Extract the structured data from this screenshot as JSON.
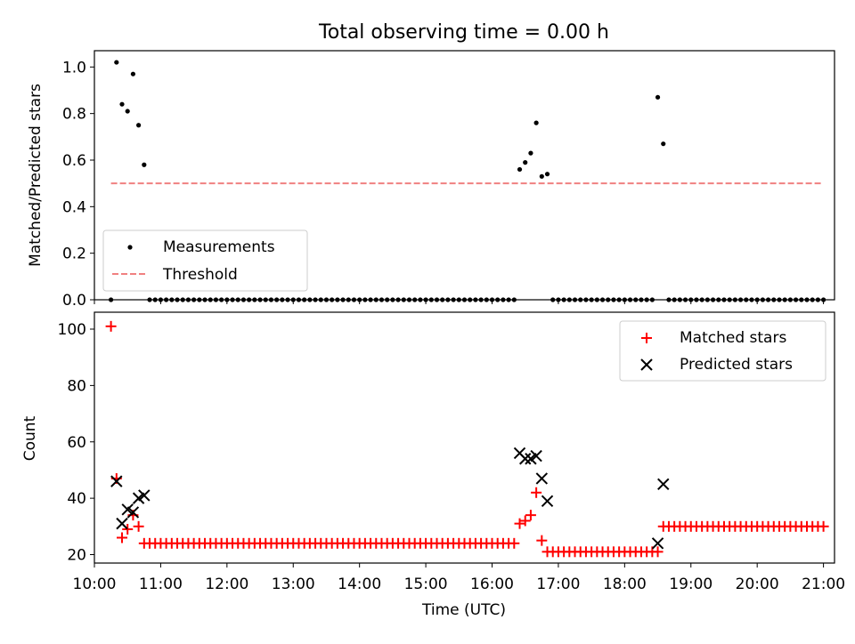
{
  "chart_data": [
    {
      "type": "scatter",
      "title": "Total observing time = 0.00 h",
      "xlabel": "",
      "ylabel": "Matched/Predicted stars",
      "xlim": [
        "10:00",
        "21:10"
      ],
      "ylim": [
        0.0,
        1.07
      ],
      "yticks": [
        "0.0",
        "0.2",
        "0.4",
        "0.6",
        "0.8",
        "1.0"
      ],
      "grid": false,
      "legend": {
        "placement": "lower-left",
        "entries": [
          {
            "label": "Measurements",
            "marker": "dot",
            "color": "#000000"
          },
          {
            "label": "Threshold",
            "marker": "dashed-line",
            "color": "#f08080"
          }
        ]
      },
      "series": [
        {
          "name": "Measurements",
          "color": "#000000",
          "points": [
            [
              "10:15",
              0.0
            ],
            [
              "10:20",
              1.02
            ],
            [
              "10:25",
              0.84
            ],
            [
              "10:30",
              0.81
            ],
            [
              "10:35",
              0.97
            ],
            [
              "10:40",
              0.75
            ],
            [
              "10:45",
              0.58
            ],
            [
              "16:25",
              0.56
            ],
            [
              "16:30",
              0.59
            ],
            [
              "16:35",
              0.63
            ],
            [
              "16:40",
              0.76
            ],
            [
              "16:45",
              0.53
            ],
            [
              "16:50",
              0.54
            ],
            [
              "18:30",
              0.87
            ],
            [
              "18:35",
              0.67
            ]
          ],
          "zero_runs": [
            {
              "start": "10:50",
              "end": "16:20",
              "step_min": 5,
              "value": 0.0
            },
            {
              "start": "16:55",
              "end": "18:25",
              "step_min": 5,
              "value": 0.0
            },
            {
              "start": "18:40",
              "end": "21:00",
              "step_min": 5,
              "value": 0.0
            }
          ]
        },
        {
          "name": "Threshold",
          "color": "#f08080",
          "line": [
            [
              "10:15",
              0.5
            ],
            [
              "21:00",
              0.5
            ]
          ]
        }
      ]
    },
    {
      "type": "scatter",
      "title": "",
      "xlabel": "Time (UTC)",
      "ylabel": "Count",
      "xlim": [
        "10:00",
        "21:10"
      ],
      "ylim": [
        17,
        106
      ],
      "xticks": [
        "10:00",
        "11:00",
        "12:00",
        "13:00",
        "14:00",
        "15:00",
        "16:00",
        "17:00",
        "18:00",
        "19:00",
        "20:00",
        "21:00"
      ],
      "yticks": [
        "20",
        "40",
        "60",
        "80",
        "100"
      ],
      "grid": false,
      "legend": {
        "placement": "upper-right",
        "entries": [
          {
            "label": "Matched stars",
            "marker": "plus",
            "color": "#ff0000"
          },
          {
            "label": "Predicted stars",
            "marker": "x",
            "color": "#000000"
          }
        ]
      },
      "series": [
        {
          "name": "Matched stars",
          "color": "#ff0000",
          "points": [
            [
              "10:15",
              101
            ],
            [
              "10:20",
              47
            ],
            [
              "10:25",
              26
            ],
            [
              "10:30",
              29
            ],
            [
              "10:35",
              34
            ],
            [
              "10:40",
              30
            ],
            [
              "10:45",
              24
            ],
            [
              "16:25",
              31
            ],
            [
              "16:30",
              32
            ],
            [
              "16:35",
              34
            ],
            [
              "16:40",
              42
            ],
            [
              "16:45",
              25
            ],
            [
              "16:50",
              21
            ],
            [
              "18:30",
              21
            ],
            [
              "18:35",
              30
            ]
          ],
          "runs": [
            {
              "start": "10:50",
              "end": "16:20",
              "step_min": 5,
              "value": 24
            },
            {
              "start": "16:55",
              "end": "18:25",
              "step_min": 5,
              "value": 21
            },
            {
              "start": "18:40",
              "end": "21:00",
              "step_min": 5,
              "value": 30
            }
          ]
        },
        {
          "name": "Predicted stars",
          "color": "#000000",
          "points": [
            [
              "10:20",
              46
            ],
            [
              "10:25",
              31
            ],
            [
              "10:30",
              36
            ],
            [
              "10:35",
              35
            ],
            [
              "10:40",
              40
            ],
            [
              "10:45",
              41
            ],
            [
              "16:25",
              56
            ],
            [
              "16:30",
              54
            ],
            [
              "16:35",
              54
            ],
            [
              "16:40",
              55
            ],
            [
              "16:45",
              47
            ],
            [
              "16:50",
              39
            ],
            [
              "18:30",
              24
            ],
            [
              "18:35",
              45
            ]
          ]
        }
      ]
    }
  ]
}
